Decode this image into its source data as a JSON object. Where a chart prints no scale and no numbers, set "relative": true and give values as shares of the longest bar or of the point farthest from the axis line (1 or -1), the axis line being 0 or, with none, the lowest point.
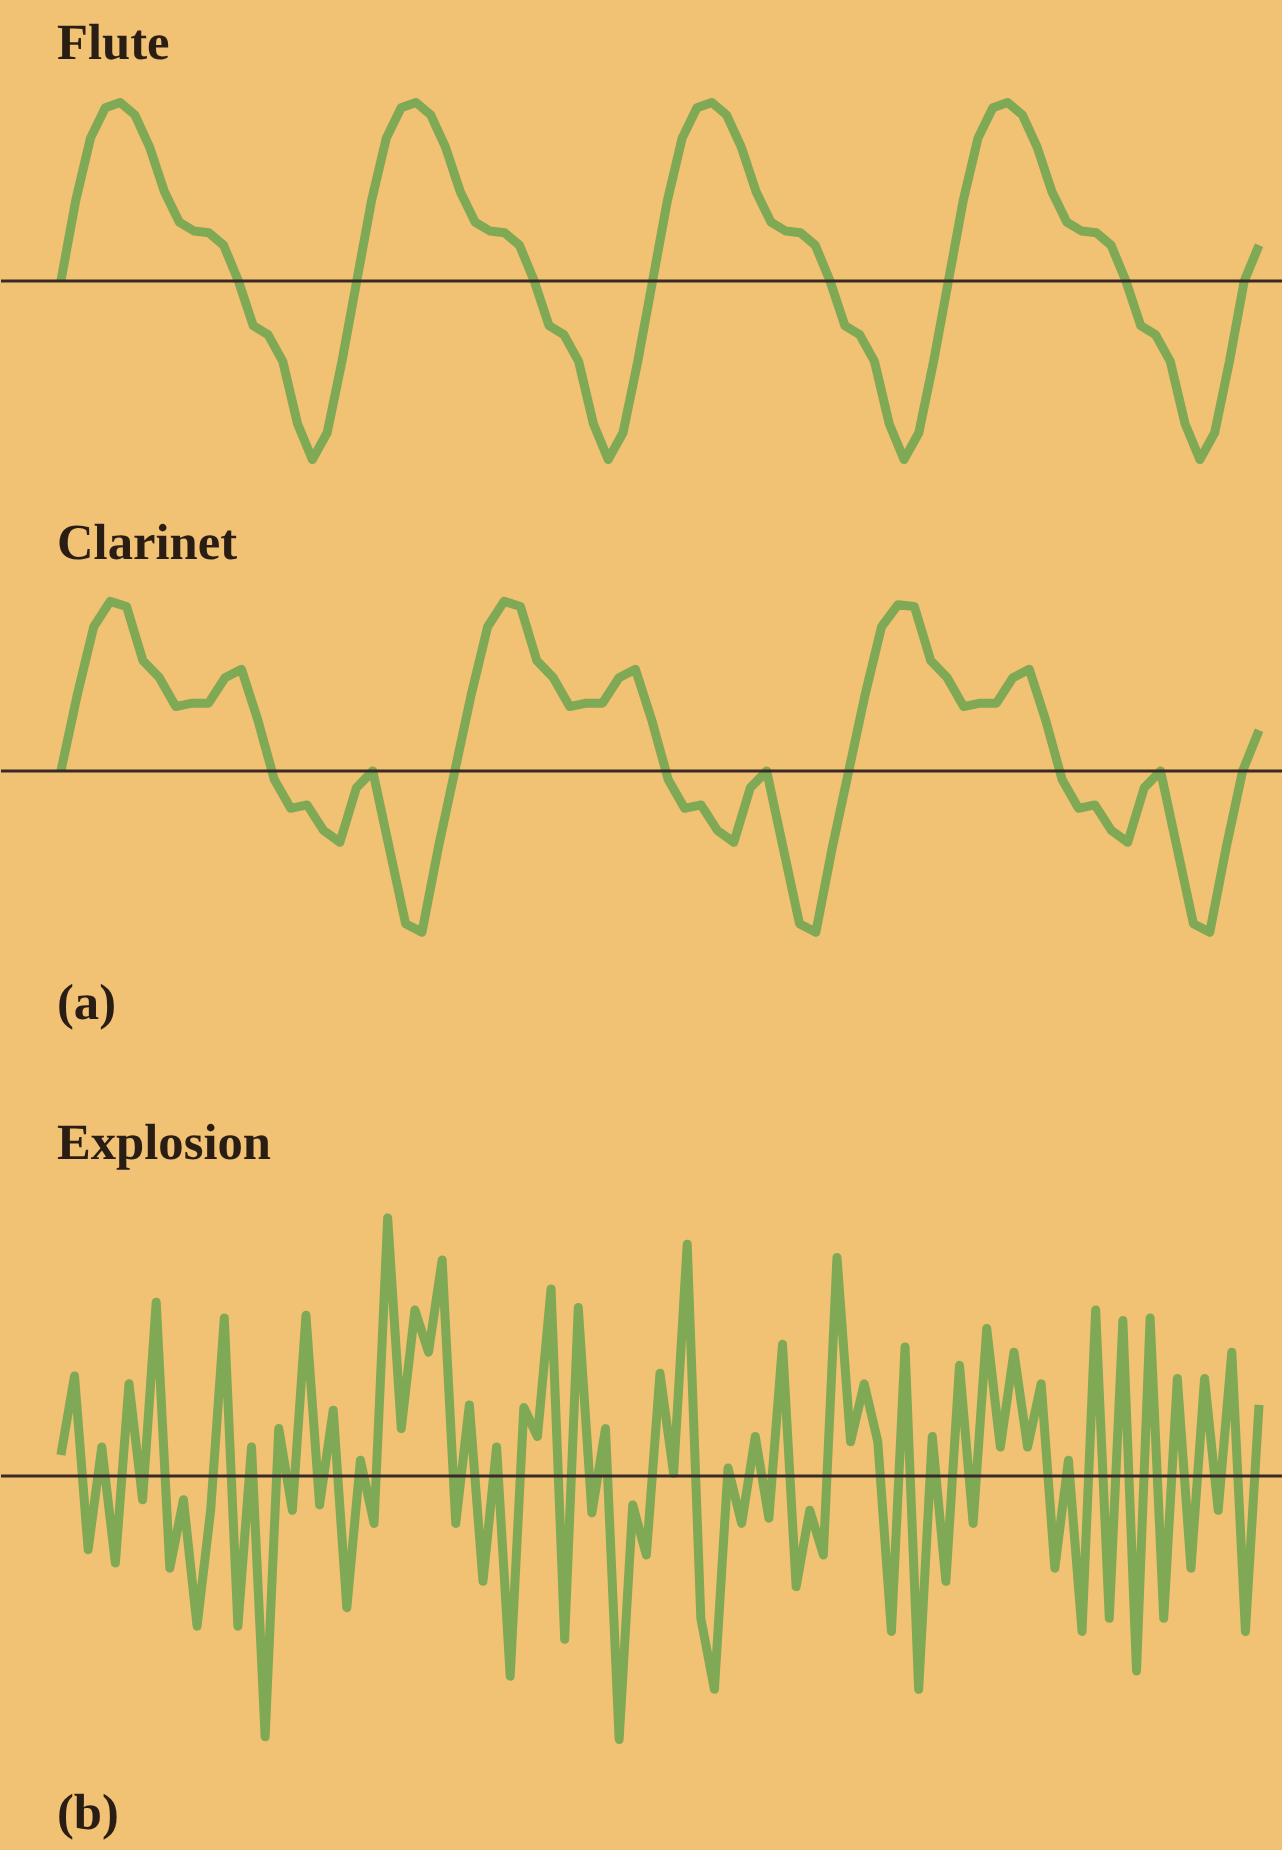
{
  "chart_data": [
    {
      "type": "line",
      "title": "Flute",
      "relative": true,
      "categories": [
        null,
        null,
        null,
        null,
        null,
        null,
        null,
        null,
        null,
        null,
        null,
        null,
        null,
        null,
        null,
        null,
        null,
        null,
        null,
        null,
        null,
        null,
        null,
        null,
        null,
        null,
        null,
        null,
        null,
        null,
        null,
        null,
        null,
        null,
        null,
        null,
        null,
        null,
        null,
        null,
        null,
        null,
        null,
        null,
        null,
        null,
        null,
        null,
        null,
        null,
        null,
        null,
        null,
        null,
        null,
        null,
        null,
        null,
        null,
        null,
        null,
        null,
        null,
        null,
        null,
        null,
        null,
        null,
        null,
        null,
        null,
        null,
        null,
        null,
        null,
        null,
        null,
        null,
        null,
        null,
        null,
        null
      ],
      "series": [
        {
          "color": "#7fa954",
          "values": [
            0,
            0.45,
            0.8,
            0.97,
            1.0,
            0.93,
            0.75,
            0.5,
            0.33,
            0.28,
            0.27,
            0.2,
            0,
            -0.25,
            -0.3,
            -0.45,
            -0.8,
            -1.0,
            -0.85,
            -0.45,
            0,
            0.45,
            0.8,
            0.97,
            1.0,
            0.93,
            0.75,
            0.5,
            0.33,
            0.28,
            0.27,
            0.2,
            0,
            -0.25,
            -0.3,
            -0.45,
            -0.8,
            -1.0,
            -0.85,
            -0.45,
            0,
            0.45,
            0.8,
            0.97,
            1.0,
            0.93,
            0.75,
            0.5,
            0.33,
            0.28,
            0.27,
            0.2,
            0,
            -0.25,
            -0.3,
            -0.45,
            -0.8,
            -1.0,
            -0.85,
            -0.45,
            0,
            0.45,
            0.8,
            0.97,
            1.0,
            0.93,
            0.75,
            0.5,
            0.33,
            0.28,
            0.27,
            0.2,
            0,
            -0.25,
            -0.3,
            -0.45,
            -0.8,
            -1.0,
            -0.85,
            -0.45,
            0,
            0.2
          ]
        }
      ]
    },
    {
      "type": "line",
      "title": "Clarinet",
      "relative": true,
      "annotations": [
        "(a)"
      ],
      "categories": [
        null,
        null,
        null,
        null,
        null,
        null,
        null,
        null,
        null,
        null,
        null,
        null,
        null,
        null,
        null,
        null,
        null,
        null,
        null,
        null,
        null,
        null,
        null,
        null,
        null,
        null,
        null,
        null,
        null,
        null,
        null,
        null,
        null,
        null,
        null,
        null,
        null,
        null,
        null,
        null,
        null,
        null,
        null,
        null,
        null,
        null,
        null,
        null,
        null,
        null,
        null,
        null,
        null,
        null,
        null,
        null,
        null,
        null,
        null,
        null,
        null,
        null,
        null,
        null,
        null,
        null,
        null,
        null,
        null,
        null,
        null,
        null,
        null,
        null
      ],
      "series": [
        {
          "color": "#7fa954",
          "values": [
            0,
            0.45,
            0.85,
            1.0,
            0.97,
            0.65,
            0.55,
            0.38,
            0.4,
            0.4,
            0.55,
            0.6,
            0.3,
            -0.05,
            -0.22,
            -0.2,
            -0.35,
            -0.42,
            -0.1,
            0,
            -0.45,
            -0.9,
            -0.95,
            -0.45,
            0,
            0.45,
            0.85,
            1.0,
            0.97,
            0.65,
            0.55,
            0.38,
            0.4,
            0.4,
            0.55,
            0.6,
            0.3,
            -0.05,
            -0.22,
            -0.2,
            -0.35,
            -0.42,
            -0.1,
            0,
            -0.45,
            -0.9,
            -0.95,
            -0.45,
            0,
            0.45,
            0.85,
            0.98,
            0.97,
            0.65,
            0.55,
            0.38,
            0.4,
            0.4,
            0.55,
            0.6,
            0.3,
            -0.05,
            -0.22,
            -0.2,
            -0.35,
            -0.42,
            -0.1,
            0,
            -0.45,
            -0.9,
            -0.95,
            -0.45,
            0,
            0.24
          ]
        }
      ]
    },
    {
      "type": "line",
      "title": "Explosion",
      "relative": true,
      "annotations": [
        "(b)"
      ],
      "categories": [
        null,
        null,
        null,
        null,
        null,
        null,
        null,
        null,
        null,
        null,
        null,
        null,
        null,
        null,
        null,
        null,
        null,
        null,
        null,
        null,
        null,
        null,
        null,
        null,
        null,
        null,
        null,
        null,
        null,
        null,
        null,
        null,
        null,
        null,
        null,
        null,
        null,
        null,
        null,
        null,
        null,
        null,
        null,
        null,
        null,
        null,
        null,
        null,
        null,
        null,
        null,
        null,
        null,
        null,
        null,
        null,
        null,
        null,
        null,
        null,
        null,
        null,
        null,
        null,
        null,
        null,
        null,
        null,
        null,
        null,
        null,
        null,
        null,
        null,
        null,
        null,
        null,
        null,
        null,
        null,
        null,
        null,
        null,
        null,
        null,
        null,
        null,
        null,
        null
      ],
      "series": [
        {
          "color": "#7fa954",
          "values": [
            0.08,
            0.38,
            -0.28,
            0.11,
            -0.33,
            0.35,
            -0.09,
            0.66,
            -0.35,
            -0.09,
            -0.57,
            -0.13,
            0.6,
            -0.57,
            0.11,
            -0.99,
            0.18,
            -0.13,
            0.61,
            -0.11,
            0.25,
            -0.5,
            0.06,
            -0.18,
            0.98,
            0.18,
            0.63,
            0.47,
            0.82,
            -0.18,
            0.27,
            -0.4,
            0.11,
            -0.76,
            0.26,
            0.15,
            0.71,
            -0.62,
            0.64,
            -0.14,
            0.18,
            -1.0,
            -0.11,
            -0.3,
            0.39,
            0.01,
            0.88,
            -0.54,
            -0.81,
            0.03,
            -0.18,
            0.15,
            -0.16,
            0.5,
            -0.42,
            -0.13,
            -0.3,
            0.83,
            0.13,
            0.35,
            0.13,
            -0.59,
            0.49,
            -0.81,
            0.15,
            -0.4,
            0.42,
            -0.18,
            0.56,
            0.11,
            0.47,
            0.11,
            0.35,
            -0.35,
            0.06,
            -0.59,
            0.63,
            -0.54,
            0.59,
            -0.74,
            0.6,
            -0.54,
            0.37,
            -0.35,
            0.37,
            -0.13,
            0.47,
            -0.59,
            0.27
          ]
        }
      ]
    }
  ]
}
